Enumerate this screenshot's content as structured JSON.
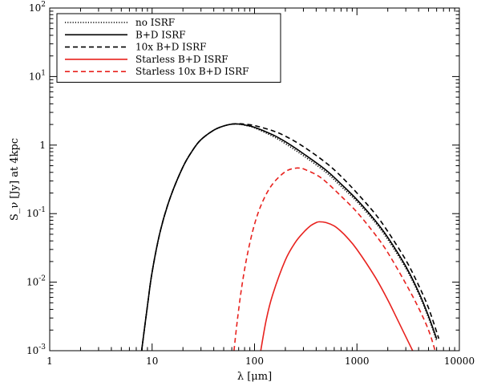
{
  "chart_data": {
    "type": "line",
    "title": "",
    "xlabel": "λ [μm]",
    "ylabel": "S_ν [Jy] at 4kpc",
    "x_scale": "log",
    "y_scale": "log",
    "xlim": [
      1,
      10000
    ],
    "ylim": [
      0.001,
      100
    ],
    "grid": false,
    "legend_position": "top-left",
    "x_ticks": [
      {
        "value": 1,
        "label": "1"
      },
      {
        "value": 10,
        "label": "10"
      },
      {
        "value": 100,
        "label": "100"
      },
      {
        "value": 1000,
        "label": "1000"
      },
      {
        "value": 10000,
        "label": "10000"
      }
    ],
    "y_ticks": [
      {
        "value": 0.001,
        "base": "10",
        "exp": "-3"
      },
      {
        "value": 0.01,
        "base": "10",
        "exp": "-2"
      },
      {
        "value": 0.1,
        "base": "10",
        "exp": "-1"
      },
      {
        "value": 1,
        "base": "1",
        "exp": ""
      },
      {
        "value": 10,
        "base": "10",
        "exp": "1"
      },
      {
        "value": 100,
        "base": "10",
        "exp": "2"
      }
    ],
    "series": [
      {
        "name": "no ISRF",
        "color": "#000000",
        "dash": "dotted",
        "x": [
          7.9,
          9,
          10,
          12,
          15,
          20,
          25,
          30,
          40,
          50,
          60,
          70,
          80,
          100,
          150,
          200,
          300,
          500,
          700,
          1000,
          1500,
          2000,
          3000,
          4000,
          5000,
          6000
        ],
        "y": [
          0.001,
          0.0045,
          0.014,
          0.055,
          0.17,
          0.48,
          0.85,
          1.2,
          1.65,
          1.9,
          2.02,
          2.02,
          1.95,
          1.78,
          1.35,
          1.05,
          0.7,
          0.4,
          0.25,
          0.15,
          0.075,
          0.042,
          0.016,
          0.0068,
          0.003,
          0.0014
        ]
      },
      {
        "name": "B+D ISRF",
        "color": "#000000",
        "dash": "solid",
        "x": [
          7.9,
          9,
          10,
          12,
          15,
          20,
          25,
          30,
          40,
          50,
          60,
          70,
          80,
          100,
          150,
          200,
          300,
          500,
          700,
          1000,
          1500,
          2000,
          3000,
          4000,
          5000,
          6000
        ],
        "y": [
          0.001,
          0.0045,
          0.014,
          0.055,
          0.17,
          0.48,
          0.85,
          1.2,
          1.65,
          1.9,
          2.02,
          2.03,
          1.97,
          1.82,
          1.42,
          1.12,
          0.75,
          0.43,
          0.27,
          0.16,
          0.08,
          0.045,
          0.017,
          0.0072,
          0.0032,
          0.0015
        ]
      },
      {
        "name": "10x B+D ISRF",
        "color": "#000000",
        "dash": "dashed",
        "x": [
          7.9,
          9,
          10,
          12,
          15,
          20,
          25,
          30,
          40,
          50,
          60,
          70,
          80,
          100,
          150,
          200,
          300,
          500,
          700,
          1000,
          1500,
          2000,
          3000,
          4000,
          5000,
          6300
        ],
        "y": [
          0.001,
          0.0045,
          0.014,
          0.055,
          0.17,
          0.48,
          0.85,
          1.2,
          1.65,
          1.9,
          2.02,
          2.05,
          2.02,
          1.93,
          1.62,
          1.35,
          0.95,
          0.55,
          0.35,
          0.2,
          0.1,
          0.055,
          0.021,
          0.009,
          0.0042,
          0.0015
        ]
      },
      {
        "name": "Starless B+D ISRF",
        "color": "#e8221e",
        "dash": "solid",
        "x": [
          115,
          130,
          150,
          200,
          250,
          300,
          350,
          400,
          430,
          500,
          600,
          700,
          800,
          1000,
          1500,
          2000,
          2500,
          3000,
          3500
        ],
        "y": [
          0.001,
          0.0028,
          0.0065,
          0.021,
          0.038,
          0.053,
          0.066,
          0.074,
          0.076,
          0.074,
          0.066,
          0.055,
          0.045,
          0.03,
          0.012,
          0.0055,
          0.0028,
          0.0016,
          0.001
        ]
      },
      {
        "name": "Starless 10x B+D ISRF",
        "color": "#e8221e",
        "dash": "dashed",
        "x": [
          63,
          68,
          75,
          85,
          100,
          120,
          150,
          200,
          250,
          280,
          300,
          400,
          500,
          700,
          1000,
          1500,
          2000,
          3000,
          4000,
          5000,
          5800
        ],
        "y": [
          0.001,
          0.0028,
          0.0085,
          0.025,
          0.07,
          0.15,
          0.27,
          0.41,
          0.46,
          0.46,
          0.45,
          0.37,
          0.29,
          0.18,
          0.105,
          0.05,
          0.027,
          0.0095,
          0.0042,
          0.002,
          0.001
        ]
      }
    ]
  }
}
